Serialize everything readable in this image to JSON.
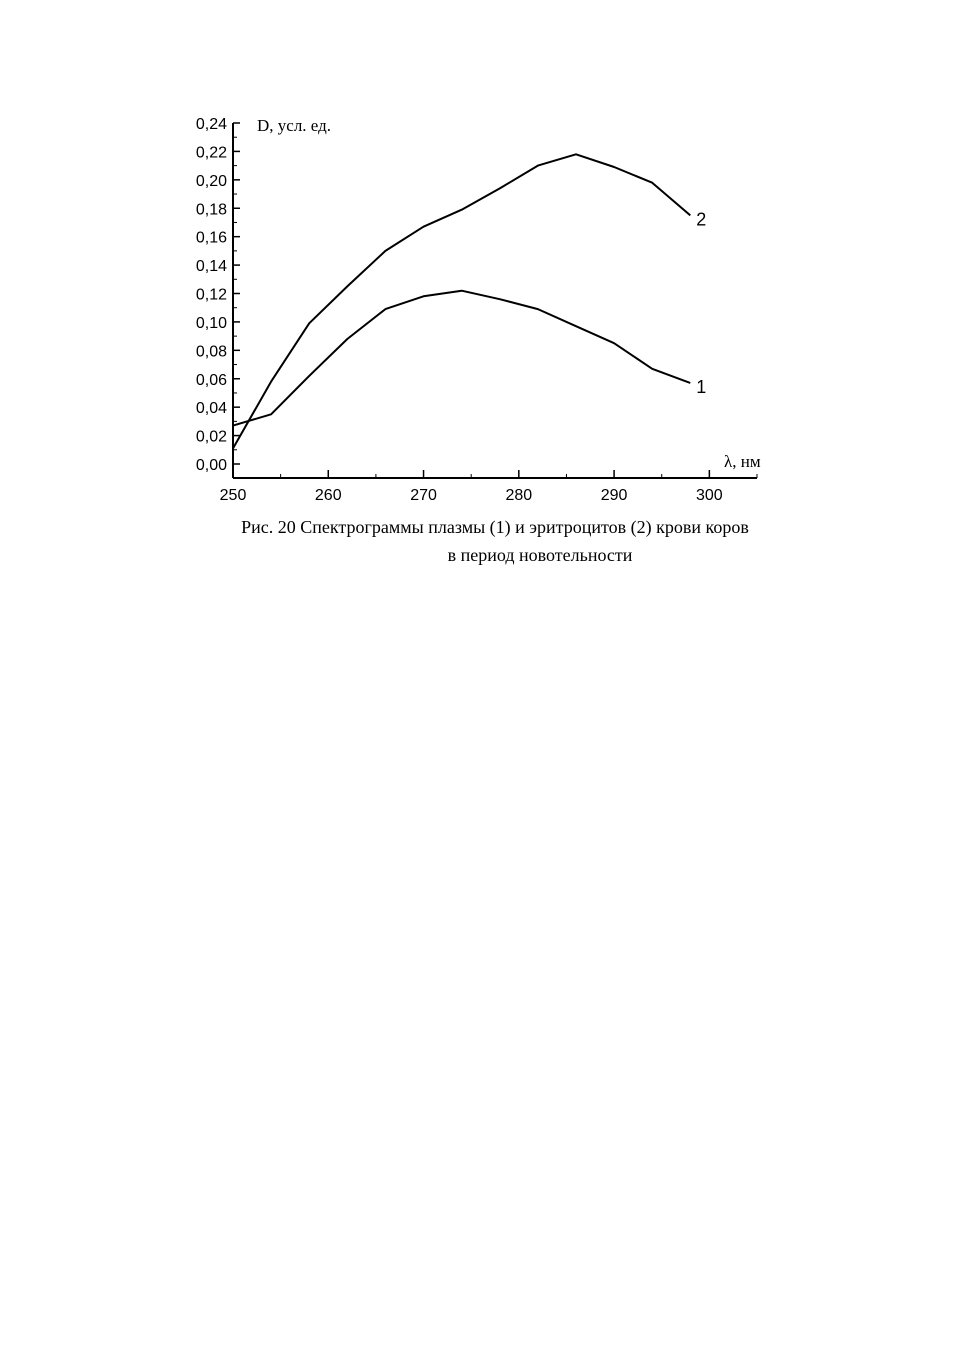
{
  "chart_data": {
    "type": "line",
    "ylabel": "D, усл. ед.",
    "xlabel": "λ, нм",
    "xlim": [
      250,
      305
    ],
    "ylim": [
      0,
      0.24
    ],
    "x_ticks": [
      "250",
      "260",
      "270",
      "280",
      "290",
      "300"
    ],
    "y_ticks": [
      "0,00",
      "0,02",
      "0,04",
      "0,06",
      "0,08",
      "0,10",
      "0,12",
      "0,14",
      "0,16",
      "0,18",
      "0,20",
      "0,22",
      "0,24"
    ],
    "grid": false,
    "series": [
      {
        "name": "1",
        "x": [
          250,
          254,
          258,
          262,
          266,
          270,
          274,
          278,
          282,
          286,
          290,
          294,
          298
        ],
        "y": [
          0.027,
          0.035,
          0.062,
          0.088,
          0.109,
          0.118,
          0.122,
          0.116,
          0.109,
          0.097,
          0.085,
          0.067,
          0.057
        ]
      },
      {
        "name": "2",
        "x": [
          250,
          254,
          258,
          262,
          266,
          270,
          274,
          278,
          282,
          286,
          290,
          294,
          298
        ],
        "y": [
          0.011,
          0.058,
          0.099,
          0.125,
          0.15,
          0.167,
          0.179,
          0.194,
          0.21,
          0.218,
          0.209,
          0.198,
          0.175
        ]
      }
    ]
  },
  "caption": {
    "line1": "Рис. 20 Спектрограммы плазмы (1) и эритроцитов (2) крови коров",
    "line2": "в период  новотельности"
  }
}
